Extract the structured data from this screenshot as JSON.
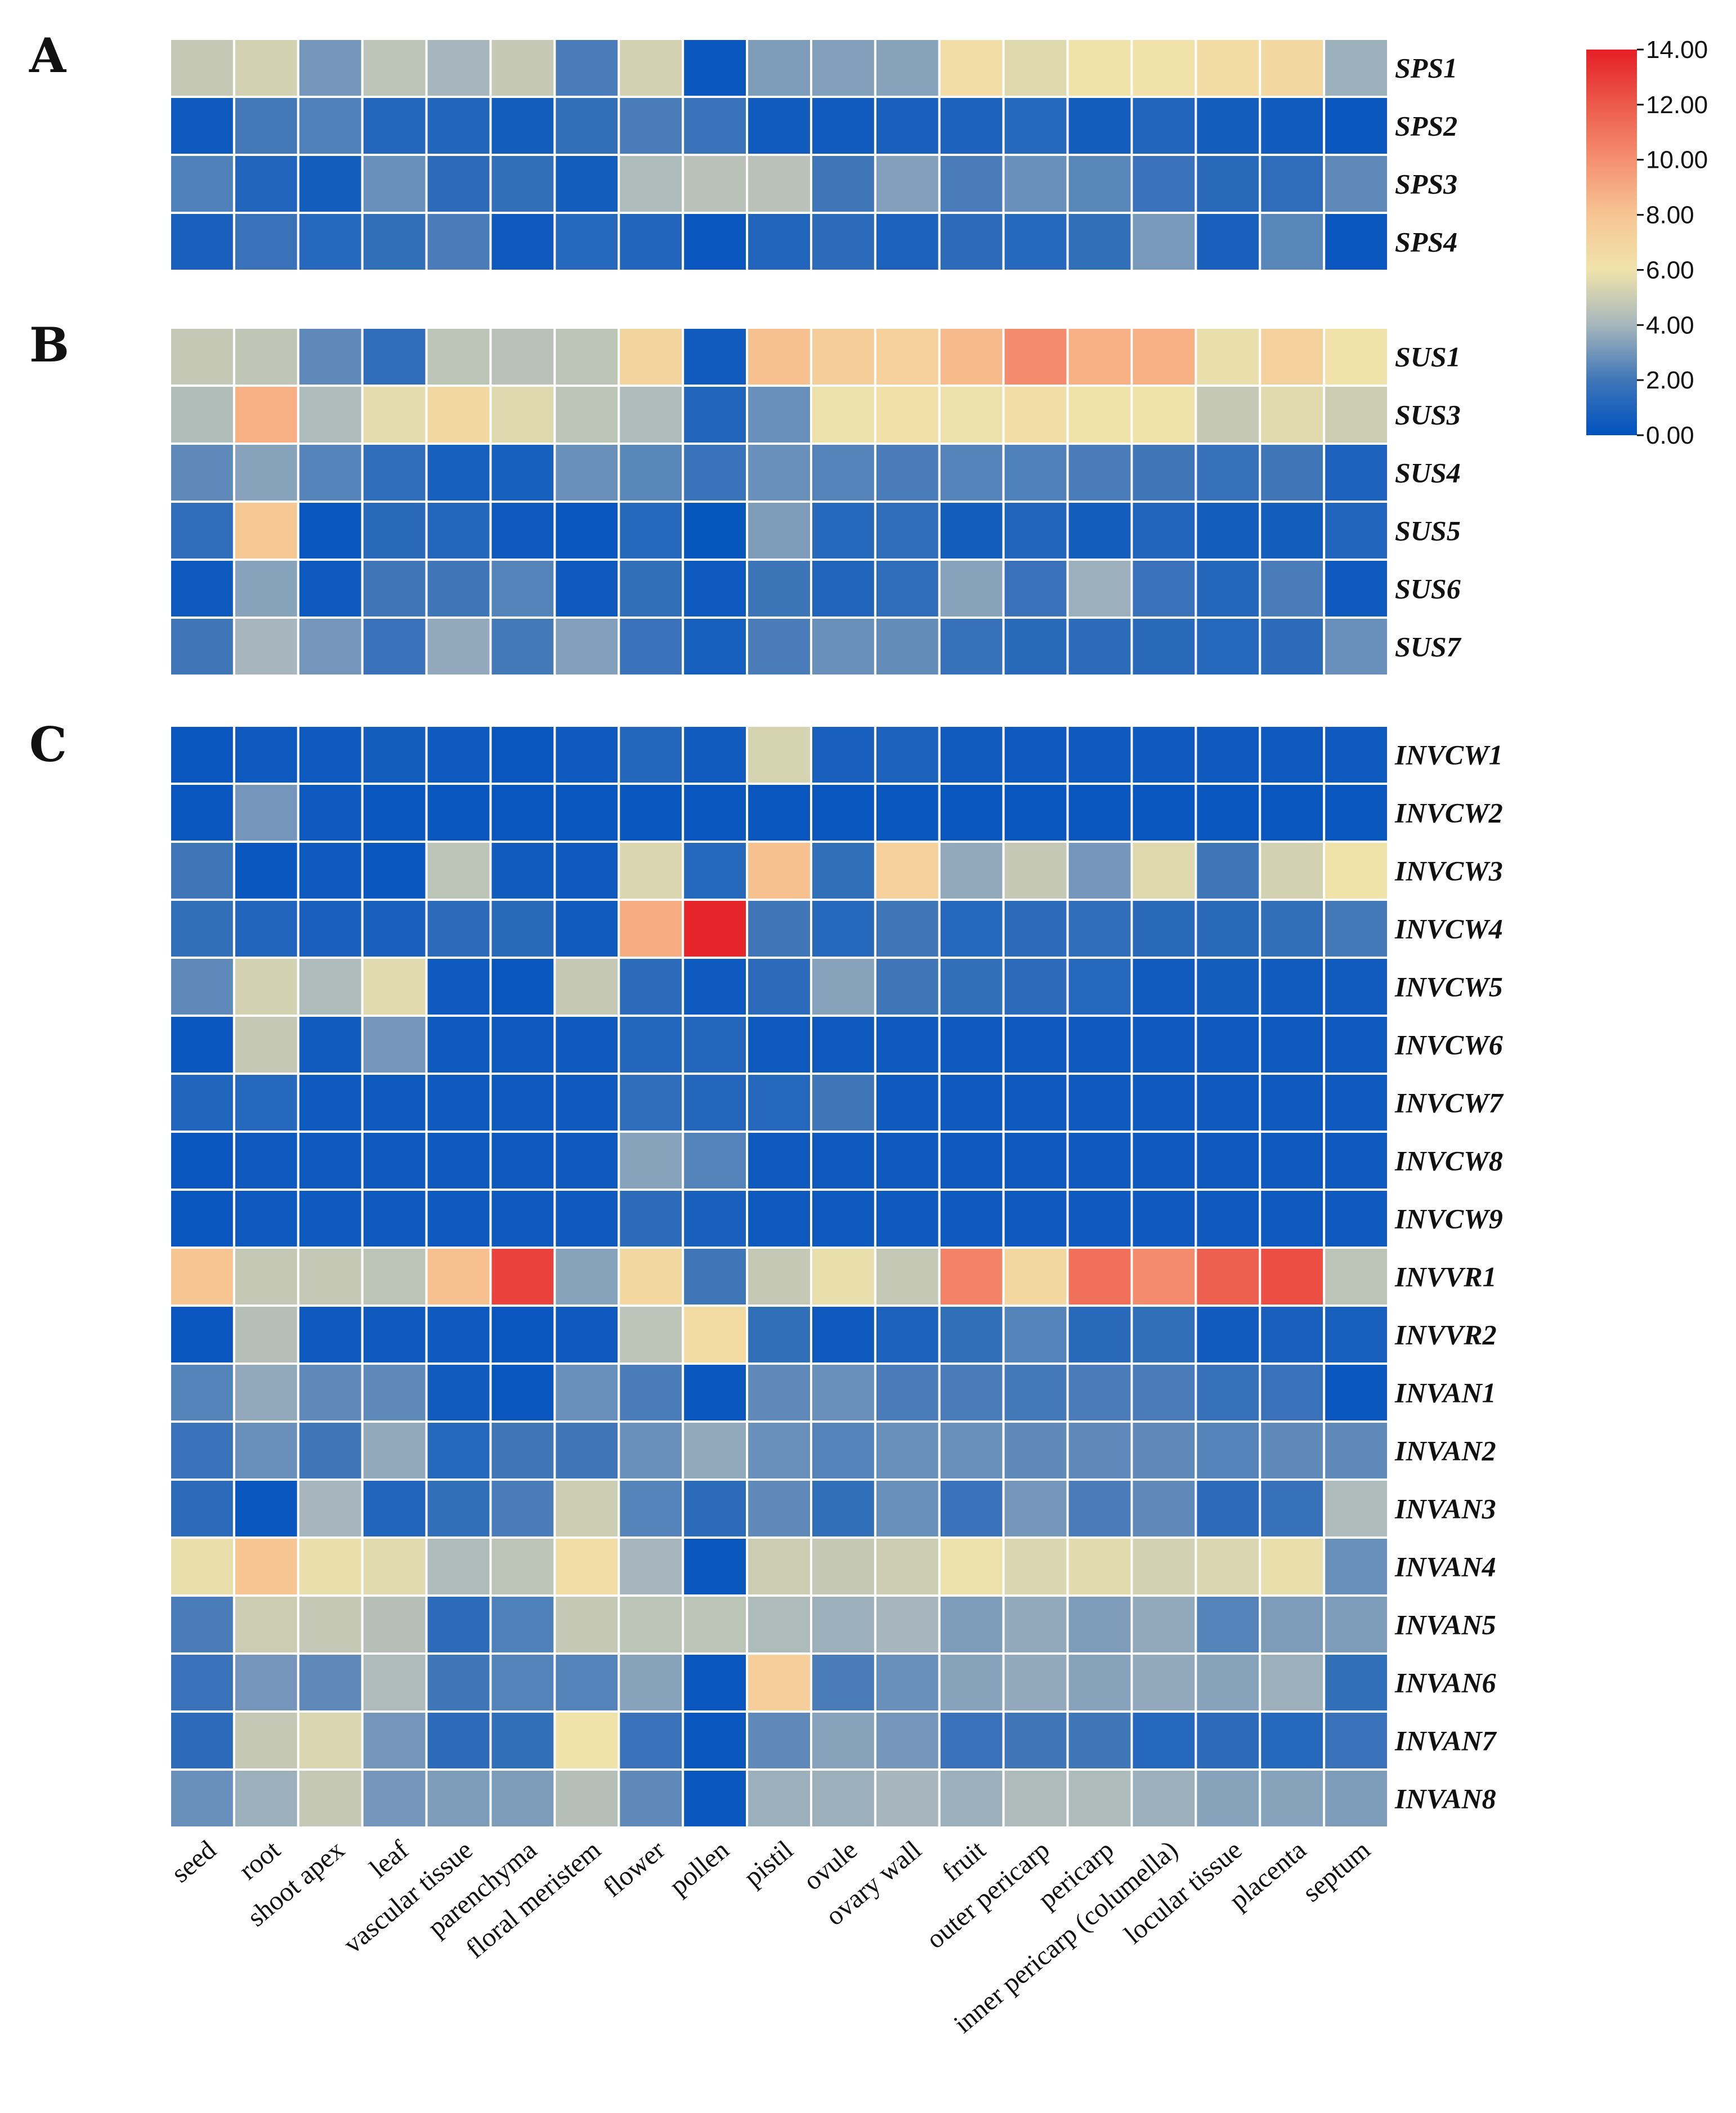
{
  "chart_data": {
    "type": "heatmap",
    "tissues": [
      "seed",
      "root",
      "shoot apex",
      "leaf",
      "vascular tissue",
      "parenchyma",
      "floral meristem",
      "flower",
      "pollen",
      "pistil",
      "ovule",
      "ovary wall",
      "fruit",
      "outer pericarp",
      "pericarp",
      "inner pericarp (columella)",
      "locular tissue",
      "placenta",
      "septum"
    ],
    "color_scale": {
      "min": 0,
      "max": 14,
      "ticks": [
        "0.00",
        "2.00",
        "4.00",
        "6.00",
        "8.00",
        "10.00",
        "12.00",
        "14.00"
      ],
      "stops": [
        {
          "v": 0,
          "color": "#0052bf"
        },
        {
          "v": 2,
          "color": "#3f76b8"
        },
        {
          "v": 4,
          "color": "#a6b6bc"
        },
        {
          "v": 6,
          "color": "#f0e3aa"
        },
        {
          "v": 8,
          "color": "#f7c592"
        },
        {
          "v": 10,
          "color": "#f59070"
        },
        {
          "v": 12,
          "color": "#ec5a4a"
        },
        {
          "v": 14,
          "color": "#e51f26"
        }
      ]
    },
    "panels": [
      {
        "letter": "A",
        "genes": [
          "SPS1",
          "SPS2",
          "SPS3",
          "SPS4"
        ],
        "values": [
          [
            4.8,
            5.2,
            3.0,
            4.6,
            4.0,
            4.8,
            2.2,
            5.2,
            0.3,
            3.2,
            3.3,
            3.4,
            6.4,
            5.5,
            6.0,
            6.1,
            6.5,
            6.8,
            3.8
          ],
          [
            0.4,
            2.1,
            2.3,
            1.1,
            1.0,
            0.6,
            1.6,
            2.2,
            1.8,
            0.5,
            0.5,
            0.8,
            0.9,
            1.2,
            0.6,
            1.0,
            0.6,
            0.5,
            0.3
          ],
          [
            2.3,
            1.0,
            0.6,
            2.8,
            1.4,
            1.6,
            0.6,
            4.2,
            4.5,
            4.5,
            2.0,
            3.3,
            2.2,
            2.8,
            2.5,
            1.8,
            1.3,
            1.5,
            2.6
          ],
          [
            0.8,
            1.8,
            1.2,
            1.6,
            2.2,
            0.4,
            1.2,
            1.0,
            0.3,
            1.0,
            1.4,
            0.9,
            1.4,
            1.2,
            1.6,
            3.1,
            0.8,
            2.5,
            0.3
          ]
        ]
      },
      {
        "letter": "B",
        "genes": [
          "SUS1",
          "SUS3",
          "SUS4",
          "SUS5",
          "SUS6",
          "SUS7"
        ],
        "values": [
          [
            4.8,
            4.7,
            2.6,
            1.5,
            4.6,
            4.5,
            4.6,
            7.0,
            0.5,
            8.2,
            7.5,
            7.3,
            8.4,
            10.2,
            8.8,
            8.8,
            5.8,
            7.2,
            6.1
          ],
          [
            4.3,
            8.8,
            4.2,
            5.7,
            6.8,
            5.5,
            4.6,
            4.2,
            1.0,
            2.8,
            5.9,
            6.2,
            5.9,
            6.4,
            6.0,
            6.0,
            4.8,
            5.6,
            5.0
          ],
          [
            2.6,
            3.4,
            2.4,
            1.5,
            0.7,
            0.7,
            2.8,
            2.5,
            1.8,
            2.8,
            2.4,
            2.2,
            2.4,
            2.3,
            2.2,
            2.0,
            1.7,
            2.0,
            0.9
          ],
          [
            1.5,
            7.8,
            0.3,
            1.3,
            1.1,
            0.4,
            0.3,
            1.2,
            0.2,
            3.2,
            1.2,
            1.5,
            0.6,
            1.0,
            0.6,
            1.0,
            0.6,
            0.6,
            1.0
          ],
          [
            0.4,
            3.4,
            0.4,
            2.0,
            2.0,
            2.4,
            0.4,
            1.6,
            0.4,
            1.9,
            1.0,
            1.5,
            3.4,
            1.8,
            3.8,
            1.8,
            1.1,
            2.2,
            0.4
          ],
          [
            2.0,
            4.0,
            3.0,
            1.8,
            3.6,
            2.1,
            3.3,
            1.8,
            0.7,
            2.2,
            2.8,
            2.7,
            1.7,
            1.3,
            1.4,
            1.3,
            1.2,
            1.4,
            2.8
          ]
        ]
      },
      {
        "letter": "C",
        "genes": [
          "INVCW1",
          "INVCW2",
          "INVCW3",
          "INVCW4",
          "INVCW5",
          "INVCW6",
          "INVCW7",
          "INVCW8",
          "INVCW9",
          "INVVR1",
          "INVVR2",
          "INVAN1",
          "INVAN2",
          "INVAN3",
          "INVAN4",
          "INVAN5",
          "INVAN6",
          "INVAN7",
          "INVAN8"
        ],
        "values": [
          [
            0.3,
            0.4,
            0.4,
            0.6,
            0.4,
            0.3,
            0.4,
            1.1,
            0.5,
            5.3,
            0.8,
            0.9,
            0.5,
            0.4,
            0.4,
            0.4,
            0.4,
            0.4,
            0.4
          ],
          [
            0.3,
            3.0,
            0.4,
            0.3,
            0.3,
            0.3,
            0.3,
            0.3,
            0.3,
            0.3,
            0.3,
            0.3,
            0.3,
            0.3,
            0.3,
            0.3,
            0.3,
            0.3,
            0.3
          ],
          [
            2.0,
            0.3,
            0.4,
            0.3,
            4.6,
            0.5,
            0.4,
            5.4,
            1.2,
            8.2,
            1.6,
            7.3,
            3.6,
            4.8,
            3.0,
            5.5,
            2.0,
            5.2,
            6.0
          ],
          [
            1.6,
            1.0,
            0.8,
            0.8,
            1.4,
            1.3,
            0.5,
            9.0,
            13.8,
            2.0,
            1.2,
            2.0,
            1.2,
            1.4,
            1.5,
            1.3,
            1.3,
            1.6,
            2.1
          ],
          [
            2.6,
            5.2,
            4.2,
            5.6,
            0.4,
            0.3,
            4.8,
            1.4,
            0.4,
            1.4,
            3.4,
            2.0,
            1.6,
            1.4,
            1.2,
            0.5,
            0.6,
            0.5,
            0.5
          ],
          [
            0.3,
            4.8,
            0.5,
            3.0,
            0.4,
            0.4,
            0.4,
            1.1,
            1.1,
            0.4,
            0.4,
            0.4,
            0.4,
            0.4,
            0.4,
            0.4,
            0.4,
            0.4,
            0.4
          ],
          [
            1.0,
            1.2,
            0.4,
            0.4,
            0.4,
            0.4,
            0.4,
            1.5,
            1.1,
            1.2,
            2.0,
            0.4,
            0.4,
            0.4,
            0.4,
            0.4,
            0.4,
            0.4,
            0.4
          ],
          [
            0.3,
            0.4,
            0.4,
            0.4,
            0.4,
            0.4,
            0.4,
            3.4,
            2.4,
            0.4,
            0.4,
            0.4,
            0.4,
            0.4,
            0.4,
            0.4,
            0.4,
            0.4,
            0.4
          ],
          [
            0.3,
            0.4,
            0.4,
            0.4,
            0.4,
            0.4,
            0.4,
            1.4,
            0.8,
            0.4,
            0.4,
            0.4,
            0.4,
            0.4,
            0.4,
            0.4,
            0.4,
            0.4,
            0.4
          ],
          [
            8.0,
            4.8,
            4.8,
            4.6,
            8.2,
            12.8,
            3.4,
            6.8,
            2.0,
            4.8,
            5.8,
            4.8,
            10.5,
            6.8,
            11.2,
            10.2,
            11.8,
            12.4,
            4.6
          ],
          [
            0.3,
            4.4,
            0.4,
            0.4,
            0.4,
            0.3,
            0.4,
            4.6,
            6.6,
            1.6,
            0.4,
            0.9,
            1.6,
            2.4,
            1.3,
            1.6,
            0.5,
            0.8,
            0.7
          ],
          [
            2.4,
            3.6,
            2.6,
            2.6,
            0.5,
            0.3,
            2.8,
            2.2,
            0.3,
            2.6,
            2.8,
            2.2,
            2.2,
            2.1,
            2.2,
            2.2,
            1.7,
            1.8,
            0.3
          ],
          [
            1.8,
            2.8,
            2.0,
            3.6,
            1.2,
            2.0,
            2.0,
            2.8,
            3.6,
            2.8,
            2.4,
            2.8,
            2.8,
            2.6,
            2.6,
            2.6,
            2.4,
            2.6,
            2.6
          ],
          [
            1.4,
            0.3,
            4.0,
            1.0,
            1.6,
            2.2,
            5.0,
            2.4,
            1.4,
            2.6,
            1.6,
            2.8,
            1.8,
            3.0,
            2.2,
            2.6,
            1.4,
            1.7,
            4.2
          ],
          [
            5.8,
            8.0,
            5.8,
            5.6,
            4.2,
            4.6,
            6.4,
            4.0,
            0.3,
            5.0,
            4.8,
            5.0,
            5.9,
            5.4,
            5.6,
            5.2,
            5.4,
            5.8,
            2.8
          ],
          [
            2.2,
            5.0,
            4.8,
            4.4,
            1.4,
            2.3,
            4.8,
            4.6,
            4.6,
            4.2,
            3.8,
            4.0,
            3.2,
            3.6,
            3.2,
            3.6,
            2.4,
            3.2,
            3.2
          ],
          [
            1.8,
            3.0,
            2.6,
            4.2,
            2.0,
            2.4,
            2.4,
            3.4,
            0.3,
            7.4,
            2.2,
            2.8,
            3.4,
            3.6,
            3.4,
            3.6,
            3.4,
            3.8,
            1.6
          ],
          [
            1.4,
            4.8,
            5.4,
            3.0,
            1.4,
            1.6,
            6.0,
            1.8,
            0.3,
            2.6,
            3.4,
            3.0,
            1.8,
            2.0,
            2.0,
            1.2,
            1.4,
            1.2,
            1.8
          ],
          [
            2.8,
            3.8,
            4.8,
            3.0,
            3.2,
            3.2,
            4.4,
            2.6,
            0.3,
            3.8,
            3.8,
            4.0,
            3.8,
            4.2,
            4.2,
            3.8,
            3.4,
            3.4,
            3.2
          ]
        ]
      }
    ]
  }
}
